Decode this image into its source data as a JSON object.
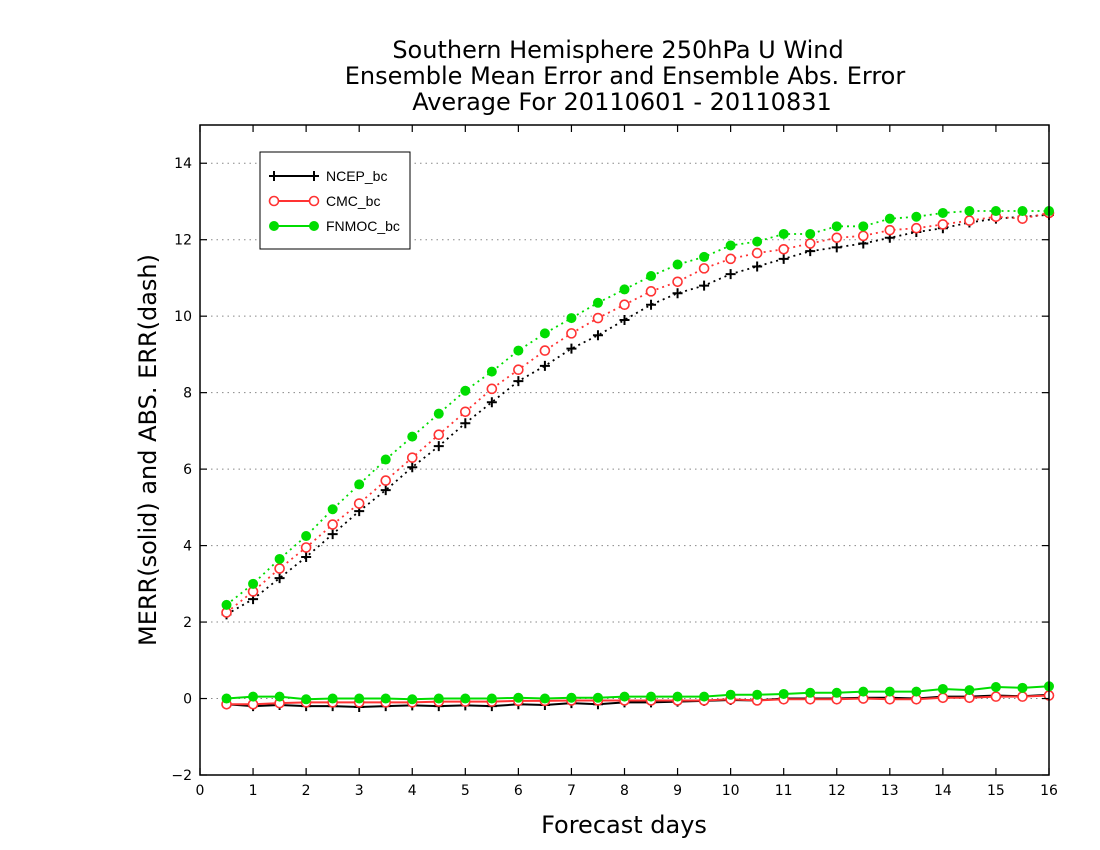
{
  "chart_data": {
    "type": "line",
    "title": [
      "Southern Hemisphere 250hPa U Wind",
      "Ensemble Mean Error and Ensemble Abs. Error",
      "Average For 20110601 - 20110831"
    ],
    "xlabel": "Forecast days",
    "ylabel": "MERR(solid) and ABS. ERR(dash)",
    "xlim": [
      0,
      16
    ],
    "ylim": [
      -2,
      15
    ],
    "xticks": [
      0,
      1,
      2,
      3,
      4,
      5,
      6,
      7,
      8,
      9,
      10,
      11,
      12,
      13,
      14,
      15,
      16
    ],
    "yticks": [
      -2,
      0,
      2,
      4,
      6,
      8,
      10,
      12,
      14
    ],
    "grid": "horizontal-dotted",
    "legend_position": "top-left",
    "x": [
      0.5,
      1,
      1.5,
      2,
      2.5,
      3,
      3.5,
      4,
      4.5,
      5,
      5.5,
      6,
      6.5,
      7,
      7.5,
      8,
      8.5,
      9,
      9.5,
      10,
      10.5,
      11,
      11.5,
      12,
      12.5,
      13,
      13.5,
      14,
      14.5,
      15,
      15.5,
      16
    ],
    "series": [
      {
        "name": "NCEP_bc",
        "color": "#000000",
        "marker": "plus",
        "abs_err": [
          2.2,
          2.6,
          3.15,
          3.7,
          4.3,
          4.9,
          5.45,
          6.05,
          6.6,
          7.2,
          7.75,
          8.3,
          8.7,
          9.15,
          9.5,
          9.9,
          10.3,
          10.6,
          10.8,
          11.1,
          11.3,
          11.5,
          11.7,
          11.8,
          11.9,
          12.05,
          12.2,
          12.3,
          12.45,
          12.55,
          12.6,
          12.65
        ],
        "mean_err": [
          -0.15,
          -0.2,
          -0.17,
          -0.2,
          -0.2,
          -0.22,
          -0.2,
          -0.18,
          -0.2,
          -0.18,
          -0.2,
          -0.15,
          -0.17,
          -0.12,
          -0.15,
          -0.1,
          -0.1,
          -0.08,
          -0.06,
          -0.04,
          -0.05,
          0.0,
          0.0,
          0.0,
          0.02,
          0.02,
          0.0,
          0.05,
          0.05,
          0.08,
          0.06,
          0.1
        ]
      },
      {
        "name": "CMC_bc",
        "color": "#ff3333",
        "marker": "open-circle",
        "abs_err": [
          2.25,
          2.8,
          3.4,
          3.95,
          4.55,
          5.1,
          5.7,
          6.3,
          6.9,
          7.5,
          8.1,
          8.6,
          9.1,
          9.55,
          9.95,
          10.3,
          10.65,
          10.9,
          11.25,
          11.5,
          11.65,
          11.75,
          11.9,
          12.05,
          12.1,
          12.25,
          12.3,
          12.4,
          12.5,
          12.6,
          12.55,
          12.7
        ],
        "mean_err": [
          -0.15,
          -0.15,
          -0.12,
          -0.1,
          -0.1,
          -0.1,
          -0.1,
          -0.1,
          -0.08,
          -0.08,
          -0.08,
          -0.06,
          -0.06,
          -0.05,
          -0.05,
          -0.05,
          -0.05,
          -0.05,
          -0.05,
          -0.02,
          -0.05,
          -0.02,
          -0.02,
          -0.02,
          0.0,
          -0.02,
          -0.02,
          0.02,
          0.02,
          0.05,
          0.05,
          0.08
        ]
      },
      {
        "name": "FNMOC_bc",
        "color": "#00dd00",
        "marker": "filled-circle",
        "abs_err": [
          2.45,
          3.0,
          3.65,
          4.25,
          4.95,
          5.6,
          6.25,
          6.85,
          7.45,
          8.05,
          8.55,
          9.1,
          9.55,
          9.95,
          10.35,
          10.7,
          11.05,
          11.35,
          11.55,
          11.85,
          11.95,
          12.15,
          12.15,
          12.35,
          12.35,
          12.55,
          12.6,
          12.7,
          12.75,
          12.75,
          12.75,
          12.75
        ],
        "mean_err": [
          0.0,
          0.05,
          0.05,
          -0.02,
          0.0,
          0.0,
          0.0,
          -0.02,
          0.0,
          0.0,
          0.0,
          0.02,
          0.0,
          0.02,
          0.02,
          0.05,
          0.05,
          0.05,
          0.05,
          0.1,
          0.1,
          0.12,
          0.15,
          0.15,
          0.18,
          0.18,
          0.18,
          0.25,
          0.22,
          0.3,
          0.28,
          0.32
        ]
      }
    ]
  }
}
